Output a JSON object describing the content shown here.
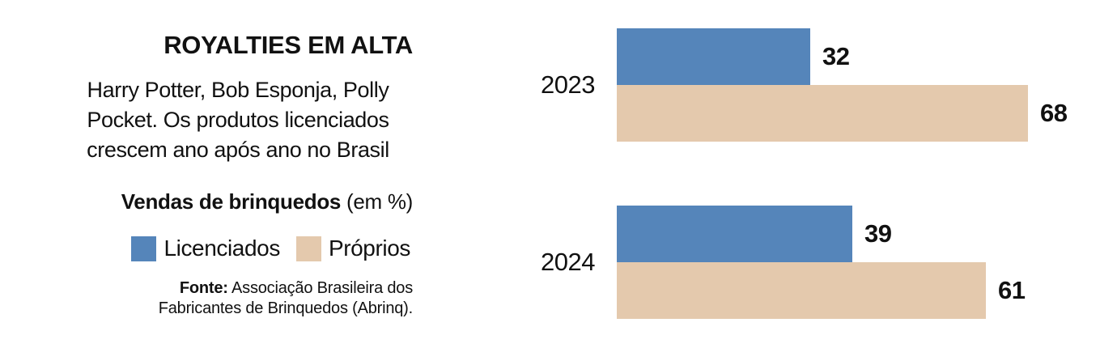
{
  "header": {
    "title": "ROYALTIES EM ALTA",
    "subtitle": "Harry Potter, Bob Esponja, Polly\nPocket. Os produtos licenciados\ncrescem ano após ano no Brasil"
  },
  "chart_label": {
    "bold": "Vendas de brinquedos",
    "normal": " (em %)"
  },
  "legend": [
    {
      "label": "Licenciados",
      "color": "#5585BA"
    },
    {
      "label": "Próprios",
      "color": "#E4C9AD"
    }
  ],
  "source": {
    "label": "Fonte:",
    "text": " Associação Brasileira dos\nFabricantes de Brinquedos (Abrinq)."
  },
  "colors": {
    "licenciados": "#5585BA",
    "proprios": "#E4C9AD",
    "text": "#111111",
    "background": "#FFFFFF"
  },
  "chart_data": {
    "type": "bar",
    "orientation": "horizontal",
    "title": "Vendas de brinquedos (em %)",
    "categories": [
      "2023",
      "2024"
    ],
    "series": [
      {
        "name": "Licenciados",
        "color": "#5585BA",
        "values": [
          32,
          39
        ]
      },
      {
        "name": "Próprios",
        "color": "#E4C9AD",
        "values": [
          68,
          61
        ]
      }
    ],
    "value_unit": "%",
    "xlim": [
      0,
      100
    ],
    "grid": false,
    "data_labels": true,
    "legend_position": "left-panel",
    "source": "Fonte: Associação Brasileira dos Fabricantes de Brinquedos (Abrinq)."
  }
}
